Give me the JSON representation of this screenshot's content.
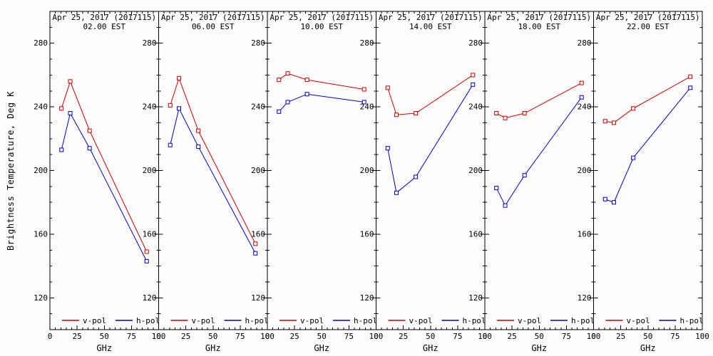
{
  "figure": {
    "background": "#fcfcfc",
    "frame_color": "#000000"
  },
  "chart_data": {
    "type": "line",
    "title": "",
    "x_label": "GHz",
    "y_label": "Brightness Temperature, Deg K",
    "x": [
      10.65,
      18.7,
      36.5,
      89.0
    ],
    "xlim": [
      0,
      100
    ],
    "ylim": [
      100,
      300
    ],
    "x_ticks": [
      0,
      25,
      50,
      75,
      100
    ],
    "y_ticks": [
      120,
      160,
      200,
      240,
      280
    ],
    "x_minor_step": 5,
    "y_minor_step": 10,
    "grid": false,
    "legend_position": "bottom-inside-each-panel",
    "legend": [
      {
        "name": "v-pol",
        "color": "#cc0000"
      },
      {
        "name": "h-pol",
        "color": "#0000cc"
      }
    ],
    "panels": [
      {
        "title": "Apr 25, 2017 (2017115)",
        "subtitle": "02.00 EST",
        "series": [
          {
            "name": "v-pol",
            "color": "#cc0000",
            "values": [
              239,
              256,
              225,
              149
            ]
          },
          {
            "name": "h-pol",
            "color": "#0000cc",
            "values": [
              213,
              236,
              214,
              143
            ]
          }
        ]
      },
      {
        "title": "Apr 25, 2017 (2017115)",
        "subtitle": "06.00 EST",
        "series": [
          {
            "name": "v-pol",
            "color": "#cc0000",
            "values": [
              241,
              258,
              225,
              154
            ]
          },
          {
            "name": "h-pol",
            "color": "#0000cc",
            "values": [
              216,
              239,
              215,
              148
            ]
          }
        ]
      },
      {
        "title": "Apr 25, 2017 (2017115)",
        "subtitle": "10.00 EST",
        "series": [
          {
            "name": "v-pol",
            "color": "#cc0000",
            "values": [
              257,
              261,
              257,
              251
            ]
          },
          {
            "name": "h-pol",
            "color": "#0000cc",
            "values": [
              237,
              243,
              248,
              243
            ]
          }
        ]
      },
      {
        "title": "Apr 25, 2017 (2017115)",
        "subtitle": "14.00 EST",
        "series": [
          {
            "name": "v-pol",
            "color": "#cc0000",
            "values": [
              252,
              235,
              236,
              260
            ]
          },
          {
            "name": "h-pol",
            "color": "#0000cc",
            "values": [
              214,
              186,
              196,
              254
            ]
          }
        ]
      },
      {
        "title": "Apr 25, 2017 (2017115)",
        "subtitle": "18.00 EST",
        "series": [
          {
            "name": "v-pol",
            "color": "#cc0000",
            "values": [
              236,
              233,
              236,
              255
            ]
          },
          {
            "name": "h-pol",
            "color": "#0000cc",
            "values": [
              189,
              178,
              197,
              246
            ]
          }
        ]
      },
      {
        "title": "Apr 25, 2017 (2017115)",
        "subtitle": "22.00 EST",
        "series": [
          {
            "name": "v-pol",
            "color": "#cc0000",
            "values": [
              231,
              230,
              239,
              259
            ]
          },
          {
            "name": "h-pol",
            "color": "#0000cc",
            "values": [
              182,
              180,
              208,
              252
            ]
          }
        ]
      }
    ]
  }
}
